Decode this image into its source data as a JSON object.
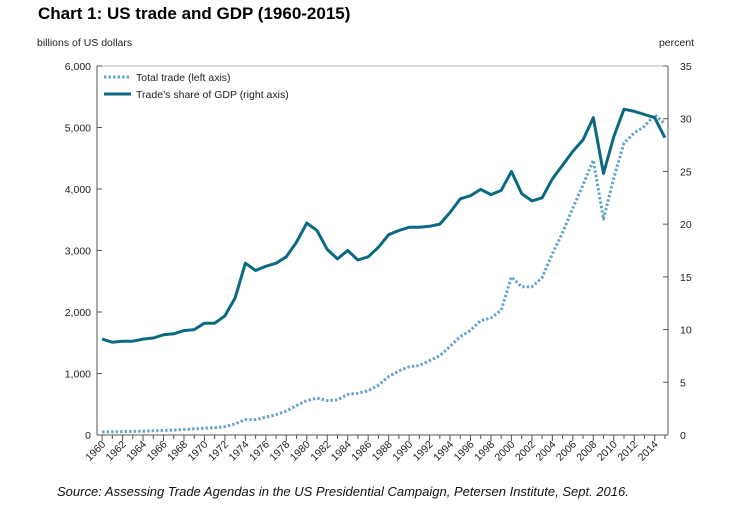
{
  "chart_data": {
    "type": "line",
    "title": "Chart 1:  US trade and GDP (1960-2015)",
    "ylabel": "billions of US dollars",
    "y2label": "percent",
    "ylim": [
      0,
      6000
    ],
    "y2lim": [
      0,
      35
    ],
    "yticks": [
      "0",
      "1,000",
      "2,000",
      "3,000",
      "4,000",
      "5,000",
      "6,000"
    ],
    "y2ticks": [
      "0",
      "5",
      "10",
      "15",
      "20",
      "25",
      "30",
      "35"
    ],
    "xticks": [
      "1960",
      "1962",
      "1964",
      "1966",
      "1968",
      "1970",
      "1972",
      "1974",
      "1976",
      "1978",
      "1980",
      "1982",
      "1984",
      "1986",
      "1988",
      "1990",
      "1992",
      "1994",
      "1996",
      "1998",
      "2000",
      "2002",
      "2004",
      "2006",
      "2008",
      "2010",
      "2012",
      "2014"
    ],
    "x": [
      1960,
      1961,
      1962,
      1963,
      1964,
      1965,
      1966,
      1967,
      1968,
      1969,
      1970,
      1971,
      1972,
      1973,
      1974,
      1975,
      1976,
      1977,
      1978,
      1979,
      1980,
      1981,
      1982,
      1983,
      1984,
      1985,
      1986,
      1987,
      1988,
      1989,
      1990,
      1991,
      1992,
      1993,
      1994,
      1995,
      1996,
      1997,
      1998,
      1999,
      2000,
      2001,
      2002,
      2003,
      2004,
      2005,
      2006,
      2007,
      2008,
      2009,
      2010,
      2011,
      2012,
      2013,
      2014,
      2015
    ],
    "legend": "top-left",
    "grid": false,
    "series": [
      {
        "name": "Total trade (left axis)",
        "axis": "left",
        "style": "dotted",
        "color": "#6aa6cc",
        "values": [
          50,
          52,
          55,
          58,
          62,
          68,
          75,
          80,
          90,
          100,
          110,
          120,
          135,
          180,
          250,
          250,
          290,
          330,
          390,
          480,
          560,
          600,
          560,
          570,
          660,
          680,
          720,
          810,
          950,
          1040,
          1110,
          1130,
          1210,
          1290,
          1440,
          1600,
          1700,
          1860,
          1900,
          2030,
          2570,
          2410,
          2410,
          2560,
          2950,
          3290,
          3690,
          4070,
          4470,
          3510,
          4180,
          4750,
          4910,
          5020,
          5210,
          5060
        ]
      },
      {
        "name": "Trade’s share of GDP (right axis)",
        "axis": "right",
        "style": "solid",
        "color": "#0b6a80",
        "values": [
          9.1,
          8.8,
          8.9,
          8.9,
          9.1,
          9.2,
          9.5,
          9.6,
          9.9,
          10.0,
          10.6,
          10.6,
          11.3,
          13.0,
          16.3,
          15.6,
          16.0,
          16.3,
          16.9,
          18.3,
          20.1,
          19.4,
          17.6,
          16.7,
          17.5,
          16.6,
          16.9,
          17.8,
          19.0,
          19.4,
          19.7,
          19.7,
          19.8,
          20.0,
          21.1,
          22.4,
          22.7,
          23.3,
          22.8,
          23.2,
          25.0,
          22.9,
          22.2,
          22.5,
          24.3,
          25.6,
          26.9,
          28.0,
          30.1,
          24.8,
          28.3,
          30.9,
          30.7,
          30.4,
          30.1,
          28.2
        ]
      }
    ]
  },
  "source": "Source:  Assessing Trade Agendas in the US Presidential Campaign, Petersen Institute, Sept. 2016."
}
